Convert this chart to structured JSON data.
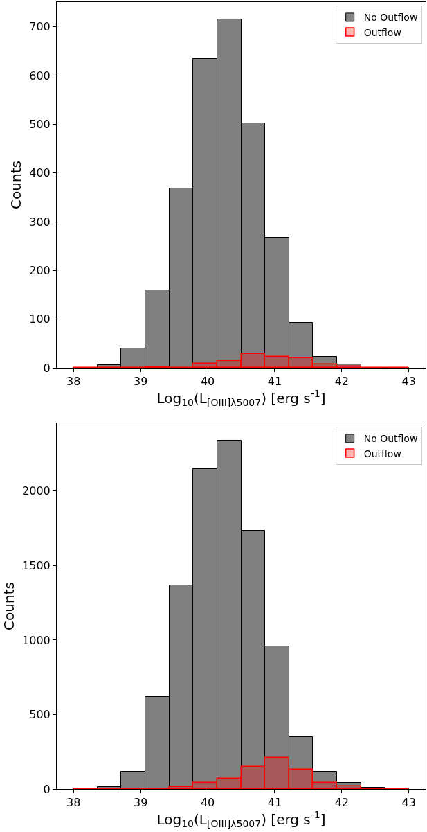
{
  "chart_data": [
    {
      "type": "histogram",
      "xlabel": "Log$_{10}$(L$_{[OIII]λ5007}$) [erg s$^{-1}$]",
      "ylabel": "Counts",
      "bins": [
        38,
        38.357,
        38.714,
        39.071,
        39.429,
        39.786,
        40.143,
        40.5,
        40.857,
        41.214,
        41.571,
        41.929,
        42.286,
        42.643,
        43
      ],
      "series": [
        {
          "name": "No Outflow",
          "color": "#808080",
          "values": [
            0,
            6,
            40,
            159,
            369,
            634,
            716,
            502,
            267,
            92,
            23,
            7,
            null,
            0
          ]
        },
        {
          "name": "Outflow",
          "color": "#ff0000",
          "values": [
            0,
            0,
            0,
            1,
            0,
            9,
            14,
            28,
            23,
            20,
            7,
            3,
            0,
            0
          ]
        }
      ],
      "xlim": [
        37.75,
        43.25
      ],
      "xticks": [
        38,
        39,
        40,
        41,
        42,
        43
      ],
      "ylim": [
        0,
        751
      ],
      "yticks": [
        0,
        100,
        200,
        300,
        400,
        500,
        600,
        700
      ],
      "legend": "top right"
    },
    {
      "type": "histogram",
      "xlabel": "Log$_{10}$(L$_{[OIII]λ5007}$) [erg s$^{-1}$]",
      "ylabel": "Counts",
      "bins": [
        38,
        38.357,
        38.714,
        39.071,
        39.429,
        39.786,
        40.143,
        40.5,
        40.857,
        41.214,
        41.571,
        41.929,
        42.286,
        42.643,
        43
      ],
      "series": [
        {
          "name": "No Outflow",
          "color": "#808080",
          "values": [
            0,
            13,
            114,
            620,
            1367,
            2146,
            2339,
            1734,
            959,
            349,
            118,
            42,
            10,
            0
          ]
        },
        {
          "name": "Outflow",
          "color": "#ff0000",
          "values": [
            0,
            0,
            0,
            0,
            13,
            41,
            70,
            149,
            208,
            131,
            42,
            17,
            0,
            0
          ]
        }
      ],
      "xlim": [
        37.75,
        43.25
      ],
      "xticks": [
        38,
        39,
        40,
        41,
        42,
        43
      ],
      "ylim": [
        0,
        2455
      ],
      "yticks": [
        0,
        500,
        1000,
        1500,
        2000
      ],
      "legend": "top right"
    }
  ]
}
